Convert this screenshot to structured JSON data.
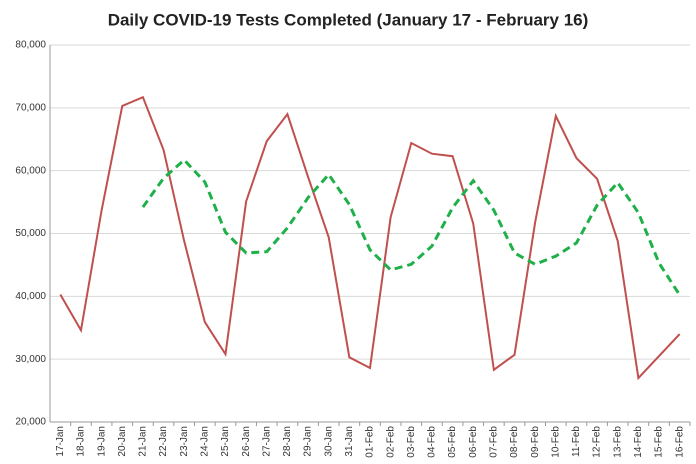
{
  "chart_data": {
    "type": "line",
    "title": "Daily COVID-19 Tests Completed (January 17 - February 16)",
    "categories": [
      "17-Jan",
      "18-Jan",
      "19-Jan",
      "20-Jan",
      "21-Jan",
      "22-Jan",
      "23-Jan",
      "24-Jan",
      "25-Jan",
      "26-Jan",
      "27-Jan",
      "28-Jan",
      "29-Jan",
      "30-Jan",
      "31-Jan",
      "01-Feb",
      "02-Feb",
      "03-Feb",
      "04-Feb",
      "05-Feb",
      "06-Feb",
      "07-Feb",
      "08-Feb",
      "09-Feb",
      "10-Feb",
      "11-Feb",
      "12-Feb",
      "13-Feb",
      "14-Feb",
      "15-Feb",
      "16-Feb"
    ],
    "series": [
      {
        "color": "#c0504d",
        "dashed": false,
        "values": [
          40300,
          34600,
          53700,
          70300,
          71700,
          63300,
          48800,
          35900,
          30800,
          55100,
          64700,
          69000,
          59000,
          49400,
          30300,
          28600,
          52600,
          64400,
          62700,
          62300,
          51600,
          28300,
          30700,
          51800,
          68700,
          62000,
          58700,
          48800,
          27000,
          30500,
          34000
        ]
      },
      {
        "color": "#1fb04a",
        "dashed": true,
        "values": [
          null,
          null,
          null,
          null,
          54200,
          58800,
          61700,
          58200,
          50200,
          46900,
          47100,
          50900,
          55700,
          59400,
          54600,
          47400,
          44200,
          45100,
          48000,
          54100,
          58400,
          53700,
          46900,
          45100,
          46400,
          48500,
          54500,
          58100,
          53300,
          45300,
          40200
        ]
      }
    ],
    "ylim": [
      20000,
      80000
    ],
    "yticks": [
      {
        "value": 20000,
        "label": "20,000"
      },
      {
        "value": 30000,
        "label": "30,000"
      },
      {
        "value": 40000,
        "label": "40,000"
      },
      {
        "value": 50000,
        "label": "50,000"
      },
      {
        "value": 60000,
        "label": "60,000"
      },
      {
        "value": 70000,
        "label": "70,000"
      },
      {
        "value": 80000,
        "label": "80,000"
      }
    ],
    "grid": true
  }
}
